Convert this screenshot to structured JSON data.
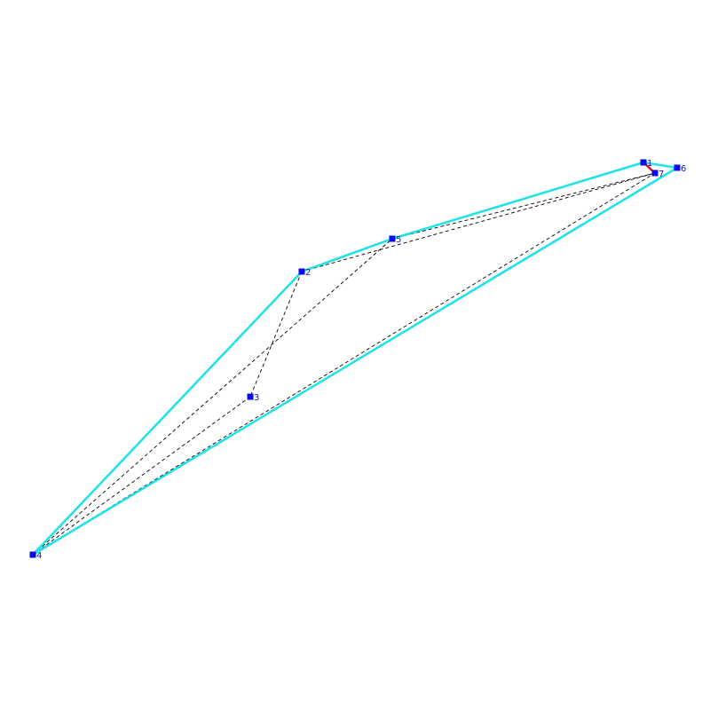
{
  "diagram": {
    "colors": {
      "hull": "#1de3e8",
      "dashed": "#000000",
      "highlight": "#e01010",
      "vertex": "#0a0aee",
      "label": "#1a1a8a"
    },
    "vertices": [
      {
        "id": "1",
        "label": "1"
      },
      {
        "id": "2",
        "label": "2"
      },
      {
        "id": "3",
        "label": "3"
      },
      {
        "id": "4",
        "label": "4"
      },
      {
        "id": "5",
        "label": "5"
      },
      {
        "id": "6",
        "label": "6"
      },
      {
        "id": "7",
        "label": "7"
      }
    ],
    "hull_edges": [
      [
        "1",
        "6"
      ],
      [
        "6",
        "4"
      ],
      [
        "4",
        "2"
      ],
      [
        "2",
        "5"
      ],
      [
        "5",
        "1"
      ]
    ],
    "dashed_edges": [
      [
        "2",
        "3"
      ],
      [
        "3",
        "4"
      ],
      [
        "4",
        "5"
      ],
      [
        "4",
        "7"
      ],
      [
        "5",
        "7"
      ],
      [
        "2",
        "7"
      ],
      [
        "1",
        "7"
      ]
    ],
    "highlight_edges": [
      [
        "1",
        "7"
      ]
    ]
  }
}
